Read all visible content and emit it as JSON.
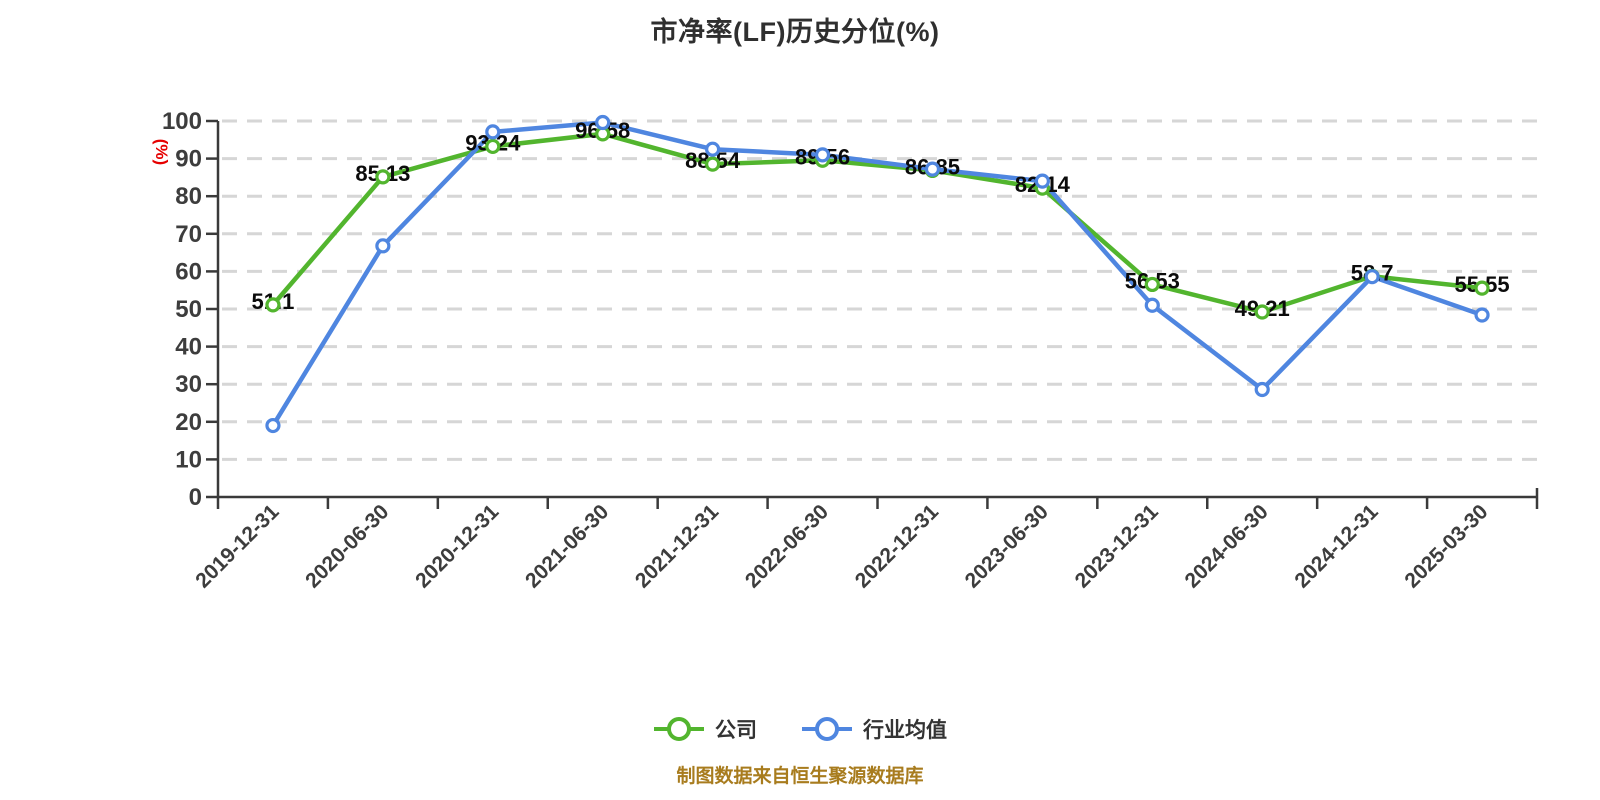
{
  "chart": {
    "title": "市净率(LF)历史分位(%)",
    "footer": "制图数据来自恒生聚源数据库",
    "legend": [
      {
        "label": "公司",
        "color": "#52b52e"
      },
      {
        "label": "行业均值",
        "color": "#4f86e0"
      }
    ]
  },
  "chart_data": {
    "type": "line",
    "title": "市净率(LF)历史分位(%)",
    "xlabel": "",
    "ylabel": "(%)",
    "ylim": [
      0,
      100
    ],
    "ytick_step": 10,
    "grid": true,
    "grid_style": "dashed",
    "legend_position": "bottom",
    "categories": [
      "2019-12-31",
      "2020-06-30",
      "2020-12-31",
      "2021-06-30",
      "2021-12-31",
      "2022-06-30",
      "2022-12-31",
      "2023-06-30",
      "2023-12-31",
      "2024-06-30",
      "2024-12-31",
      "2025-03-30"
    ],
    "series": [
      {
        "id": "company",
        "name": "公司",
        "color": "#52b52e",
        "show_labels": true,
        "values": [
          51.1,
          85.13,
          93.24,
          96.58,
          88.54,
          89.56,
          86.85,
          82.14,
          56.53,
          49.21,
          58.7,
          55.55
        ]
      },
      {
        "id": "industry",
        "name": "行业均值",
        "color": "#4f86e0",
        "show_labels": false,
        "values": [
          19,
          66.8,
          97.1,
          99.6,
          92.5,
          91,
          87.2,
          84,
          51,
          28.6,
          58.6,
          48.4
        ]
      }
    ],
    "colors": {
      "axis": "#3a3a3a",
      "tick_label": "#3d3d3d",
      "grid": "#d6d6d6",
      "data_label": "#0b0b0b",
      "axis_name": "#e60000",
      "marker_fill": "#ffffff"
    }
  }
}
